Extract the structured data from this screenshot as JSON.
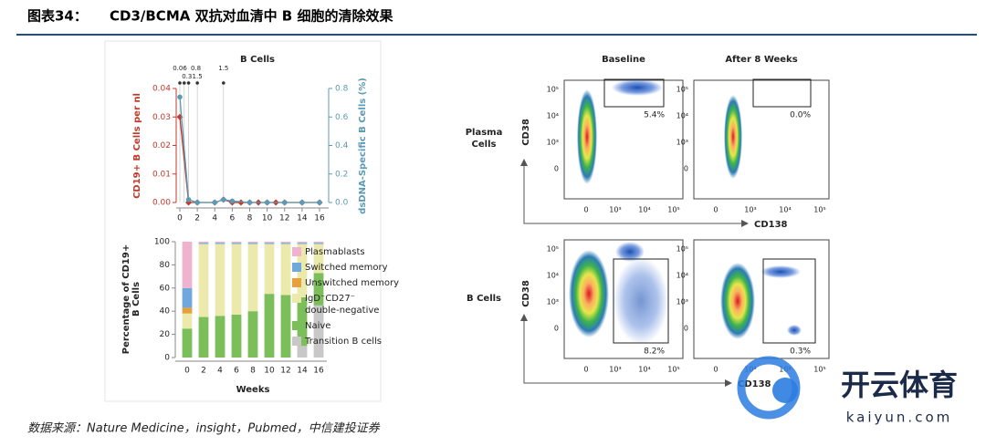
{
  "header": {
    "label": "图表34：",
    "title": "CD3/BCMA 双抗对血清中 B 细胞的清除效果"
  },
  "chart_data": [
    {
      "type": "line",
      "title": "B Cells",
      "ylabel": "CD19+ B Cells per nl",
      "y2label": "dsDNA-Specific B Cells (%)",
      "xlim": [
        0,
        16
      ],
      "xticks": [
        0,
        2,
        4,
        6,
        8,
        10,
        12,
        14,
        16
      ],
      "ylim": [
        0,
        0.04
      ],
      "yticks": [
        {
          "value": 0,
          "label": "0.00"
        },
        {
          "value": 0.01,
          "label": "0.01"
        },
        {
          "value": 0.02,
          "label": "0.02"
        },
        {
          "value": 0.03,
          "label": "0.03"
        },
        {
          "value": 0.04,
          "label": "0.04"
        }
      ],
      "y2lim": [
        0,
        0.8
      ],
      "y2ticks": [
        {
          "value": 0,
          "label": "0.0"
        },
        0.2,
        0.4,
        0.6,
        0.8
      ],
      "annotations": [
        {
          "label": "0.06",
          "x": 0
        },
        {
          "label": "0.3",
          "x": 0.5
        },
        {
          "label": "0.8",
          "x": 1
        },
        {
          "label": "1.5",
          "x": 2
        },
        {
          "label": "1.5",
          "x": 5
        }
      ],
      "series": [
        {
          "color": "#c0392b",
          "x": [
            0,
            1,
            2,
            4,
            5,
            6,
            7,
            8,
            9,
            10,
            11,
            12,
            14,
            16
          ],
          "values": [
            0.03,
            0,
            0,
            0,
            0.001,
            0,
            0,
            0,
            0,
            0,
            0,
            0,
            0,
            0
          ]
        },
        {
          "color": "#5b9bb5",
          "axis": "y2",
          "x": [
            0,
            1,
            2,
            4,
            5,
            6,
            8,
            10,
            12,
            14,
            16
          ],
          "values": [
            0.74,
            0.02,
            0,
            0,
            0.02,
            0.01,
            0,
            0,
            0,
            0,
            0
          ]
        }
      ]
    },
    {
      "type": "bar",
      "stacked": true,
      "xlabel": "Weeks",
      "ylabel": [
        "Percentage of CD19+",
        "B Cells"
      ],
      "categories": [
        "0",
        "2",
        "4",
        "6",
        "8",
        "10",
        "12",
        "14",
        "16"
      ],
      "ylim": [
        0,
        100
      ],
      "yticks": [
        0,
        20,
        40,
        60,
        80,
        100
      ],
      "series": [
        {
          "name": "Transition B cells",
          "color": "#c8c8c8",
          "values": [
            0,
            0,
            0,
            0,
            0,
            0,
            0,
            10,
            45
          ]
        },
        {
          "name": "Naive",
          "color": "#7cbf5a",
          "values": [
            25,
            35,
            36,
            37,
            40,
            55,
            54,
            42,
            28
          ]
        },
        {
          "name": "IgD⁻CD27⁻ double-negative",
          "color": "#ece9ad",
          "values": [
            13,
            63,
            62,
            61,
            58,
            43,
            44,
            46,
            25
          ]
        },
        {
          "name": "Unswitched memory",
          "color": "#e8a13a",
          "values": [
            5,
            0,
            0,
            0,
            0,
            0,
            0,
            0,
            0
          ]
        },
        {
          "name": "Switched memory",
          "color": "#6fa8dc",
          "values": [
            17,
            1,
            1,
            1,
            1,
            1,
            1,
            1,
            1
          ]
        },
        {
          "name": "Plasmablasts",
          "color": "#f0b3cf",
          "values": [
            40,
            1,
            1,
            1,
            1,
            1,
            1,
            1,
            1
          ]
        }
      ]
    }
  ],
  "flow": {
    "columns": [
      "Baseline",
      "After 8 Weeks"
    ],
    "rows": [
      "Plasma Cells",
      "B Cells"
    ],
    "y_axis": "CD38",
    "x_axis": "CD138",
    "y_tick_labels": [
      "10⁵",
      "10⁴",
      "10³",
      "0"
    ],
    "x_tick_labels": [
      "0",
      "10³",
      "10⁴",
      "10⁵"
    ],
    "gates": [
      "5.4%",
      "0.0%",
      "8.2%",
      "0.3%"
    ]
  },
  "footer": {
    "source": "数据来源：Nature Medicine，insight，Pubmed，中信建投证券"
  },
  "watermark": {
    "brand": "开云体育",
    "url": "kaiyun.com"
  }
}
